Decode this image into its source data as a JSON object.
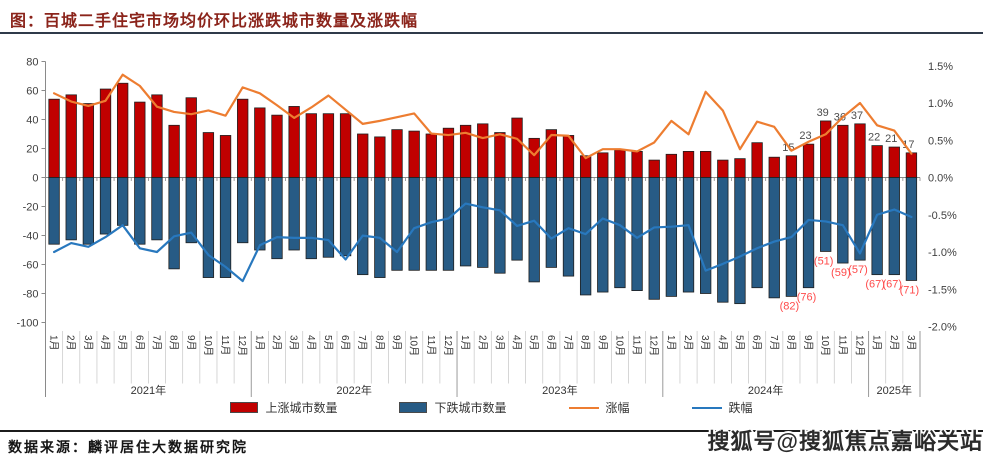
{
  "title": "图：百城二手住宅市场均价环比涨跌城市数量及涨跌幅",
  "source_note": "数据来源：麟评居住大数据研究院",
  "watermark": "搜狐号@搜狐焦点嘉峪关站",
  "colors": {
    "rise_bar": "#c00000",
    "fall_bar": "#275b85",
    "rise_line": "#ed7d31",
    "fall_line": "#2878be",
    "bar_label": "#4d4d4d",
    "fall_label": "#ff4a4a",
    "axis_text": "#404040",
    "axis_line": "#8a8a8a",
    "band_line": "#c9c9c9",
    "year_line": "#9a9a9a"
  },
  "chart_data": {
    "type": "bar",
    "subtype": "combo-bar-line",
    "month_names": [
      "1月",
      "2月",
      "3月",
      "4月",
      "5月",
      "6月",
      "7月",
      "8月",
      "9月",
      "10月",
      "11月",
      "12月"
    ],
    "year_groups": [
      {
        "label": "2021年",
        "months": 12
      },
      {
        "label": "2022年",
        "months": 12
      },
      {
        "label": "2023年",
        "months": 12
      },
      {
        "label": "2024年",
        "months": 12
      },
      {
        "label": "2025年",
        "months": 3
      }
    ],
    "left_axis": {
      "min": -100,
      "max": 80,
      "ticks": [
        80,
        60,
        40,
        20,
        0,
        -20,
        -40,
        -60,
        -80,
        -100
      ]
    },
    "right_axis": {
      "min": -2.0,
      "max": 1.5,
      "ticks": [
        {
          "v": 1.5,
          "t": "1.5%"
        },
        {
          "v": 1.0,
          "t": "1.0%"
        },
        {
          "v": 0.5,
          "t": "0.5%"
        },
        {
          "v": 0.0,
          "t": "0.0%"
        },
        {
          "v": -0.5,
          "t": "-0.5%"
        },
        {
          "v": -1.0,
          "t": "-1.0%"
        },
        {
          "v": -1.5,
          "t": "-1.5%"
        },
        {
          "v": -2.0,
          "t": "-2.0%"
        }
      ]
    },
    "series": [
      {
        "name": "上涨城市数量",
        "type": "bar",
        "axis": "left",
        "color": "#c00000",
        "values": [
          54,
          57,
          51,
          61,
          65,
          52,
          57,
          36,
          55,
          31,
          29,
          54,
          48,
          43,
          49,
          44,
          44,
          44,
          30,
          28,
          33,
          32,
          30,
          34,
          36,
          37,
          31,
          41,
          27,
          33,
          29,
          15,
          17,
          19,
          18,
          12,
          16,
          18,
          18,
          12,
          13,
          24,
          14,
          15,
          23,
          39,
          36,
          37,
          22,
          21,
          17
        ]
      },
      {
        "name": "下跌城市数量",
        "type": "bar",
        "axis": "left",
        "color": "#275b85",
        "values": [
          -46,
          -43,
          -46,
          -39,
          -33,
          -46,
          -43,
          -63,
          -45,
          -69,
          -69,
          -45,
          -50,
          -56,
          -50,
          -56,
          -55,
          -54,
          -67,
          -69,
          -64,
          -64,
          -64,
          -64,
          -61,
          -62,
          -66,
          -57,
          -72,
          -62,
          -68,
          -81,
          -79,
          -76,
          -78,
          -84,
          -82,
          -79,
          -80,
          -86,
          -87,
          -76,
          -83,
          -82,
          -76,
          -51,
          -59,
          -57,
          -67,
          -67,
          -71
        ]
      },
      {
        "name": "涨幅",
        "type": "line",
        "axis": "right",
        "color": "#ed7d31",
        "values": [
          1.13,
          1.02,
          0.96,
          1.03,
          1.38,
          1.23,
          0.95,
          0.88,
          0.85,
          0.9,
          0.83,
          1.21,
          1.13,
          0.97,
          0.8,
          0.94,
          1.1,
          0.91,
          0.72,
          0.76,
          0.81,
          0.86,
          0.59,
          0.57,
          0.6,
          0.53,
          0.58,
          0.52,
          0.3,
          0.57,
          0.56,
          0.26,
          0.38,
          0.38,
          0.35,
          0.47,
          0.76,
          0.58,
          1.15,
          0.9,
          0.38,
          0.75,
          0.68,
          0.36,
          0.48,
          0.58,
          0.81,
          1.0,
          0.7,
          0.63,
          0.32
        ]
      },
      {
        "name": "跌幅",
        "type": "line",
        "axis": "right",
        "color": "#2878be",
        "values": [
          -1.0,
          -0.88,
          -0.93,
          -0.8,
          -0.64,
          -0.95,
          -1.0,
          -0.79,
          -0.74,
          -1.04,
          -1.2,
          -1.39,
          -0.91,
          -0.8,
          -0.81,
          -0.81,
          -0.84,
          -1.1,
          -0.78,
          -0.81,
          -1.0,
          -0.68,
          -0.6,
          -0.55,
          -0.35,
          -0.4,
          -0.44,
          -0.65,
          -0.58,
          -0.82,
          -0.68,
          -0.76,
          -0.55,
          -0.64,
          -0.81,
          -0.67,
          -0.66,
          -0.64,
          -1.25,
          -1.16,
          -1.06,
          -0.95,
          -0.86,
          -0.8,
          -0.57,
          -0.59,
          -0.64,
          -1.02,
          -0.5,
          -0.43,
          -0.53
        ]
      }
    ],
    "value_labels": {
      "rising": {
        "43": "15",
        "44": "23",
        "45": "39",
        "46": "36",
        "47": "37",
        "48": "22",
        "49": "21",
        "50": "17"
      },
      "falling": {
        "43": "(82)",
        "44": "(76)",
        "45": "(51)",
        "46": "(59)",
        "47": "(57)",
        "48": "(67)",
        "49": "(67)",
        "50": "(71)"
      }
    }
  }
}
